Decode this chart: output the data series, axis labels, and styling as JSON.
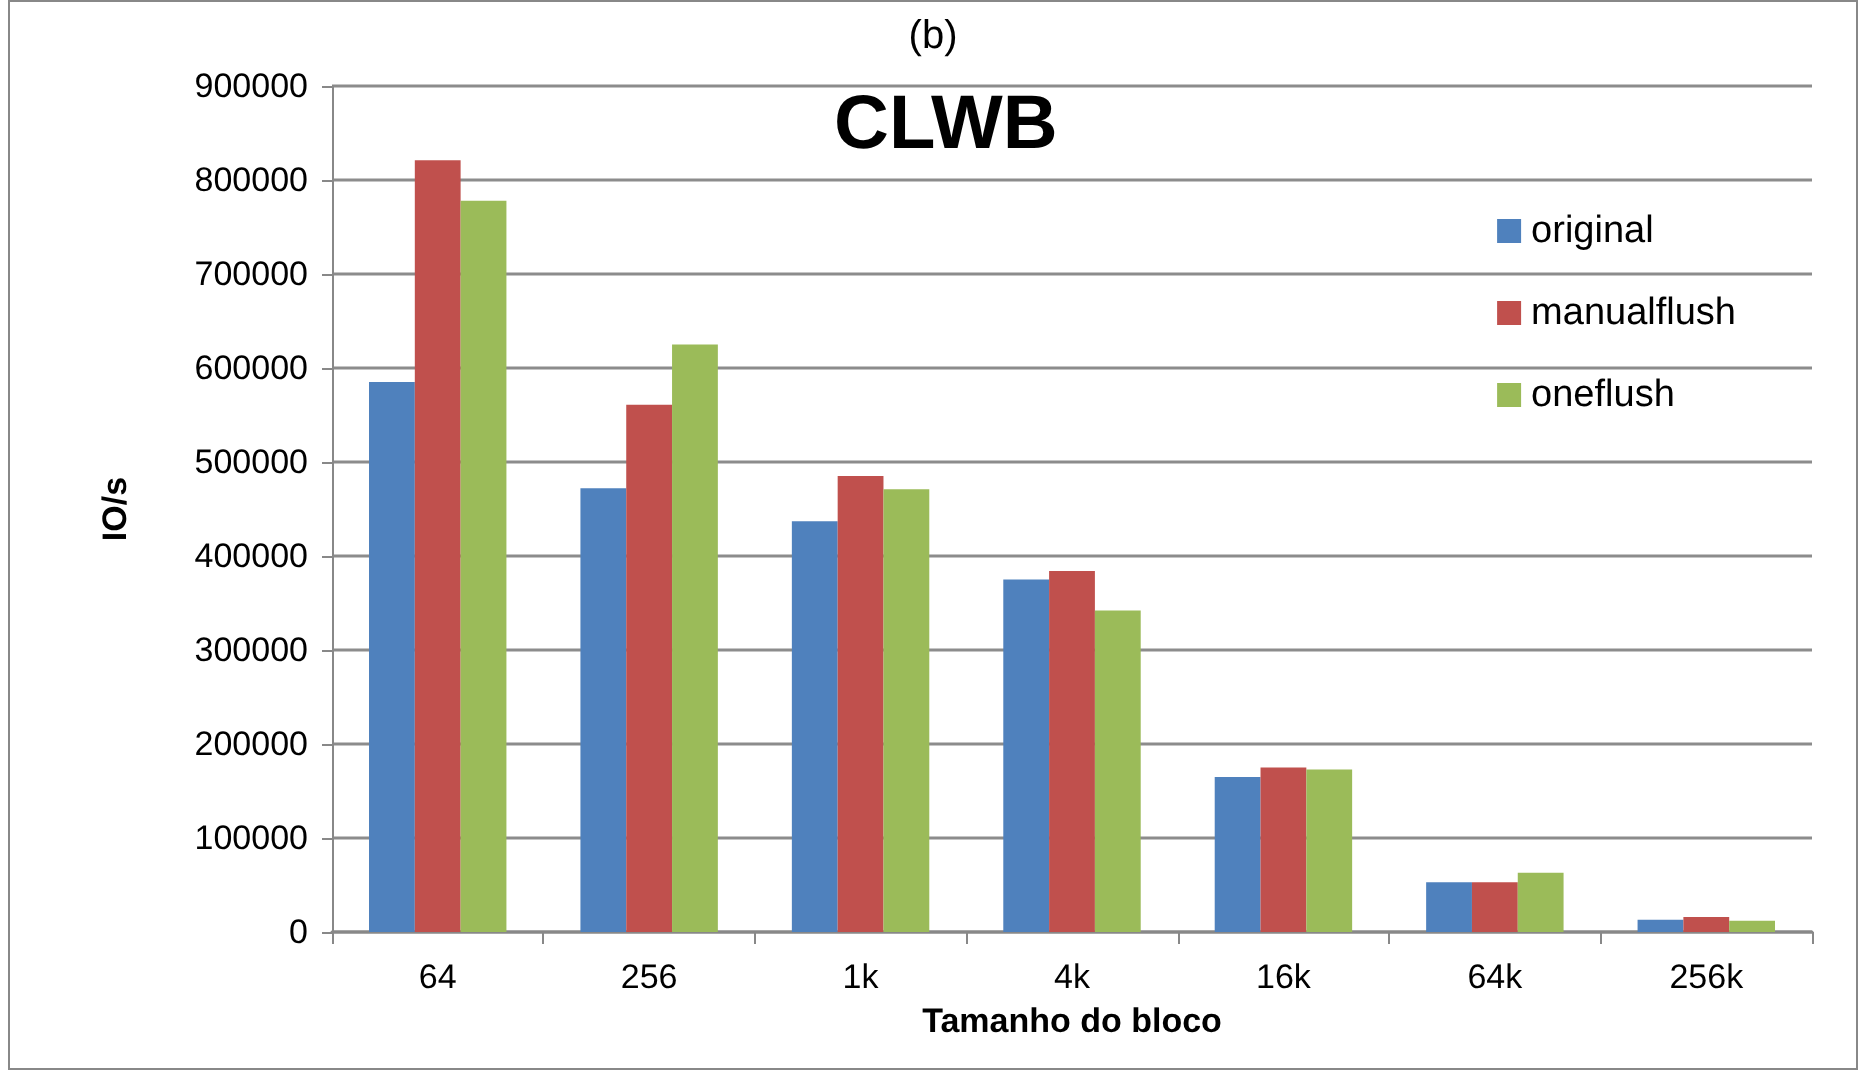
{
  "chart_data": {
    "type": "bar",
    "title": "(b)",
    "annotations": [
      "CLWB"
    ],
    "xlabel": "Tamanho do bloco",
    "ylabel": "IO/s",
    "categories": [
      "64",
      "256",
      "1k",
      "4k",
      "16k",
      "64k",
      "256k"
    ],
    "series": [
      {
        "name": "original",
        "color": "#4f81bd",
        "values": [
          585000,
          472000,
          437000,
          375000,
          165000,
          53000,
          13000
        ]
      },
      {
        "name": "manualflush",
        "color": "#c0504d",
        "values": [
          821000,
          561000,
          485000,
          384000,
          175000,
          53000,
          16000
        ]
      },
      {
        "name": "oneflush",
        "color": "#9bbb59",
        "values": [
          778000,
          625000,
          471000,
          342000,
          173000,
          63000,
          12000
        ]
      }
    ],
    "ylim": [
      0,
      900000
    ],
    "yticks": [
      0,
      100000,
      200000,
      300000,
      400000,
      500000,
      600000,
      700000,
      800000,
      900000
    ],
    "grid": "y",
    "legend": "right"
  }
}
